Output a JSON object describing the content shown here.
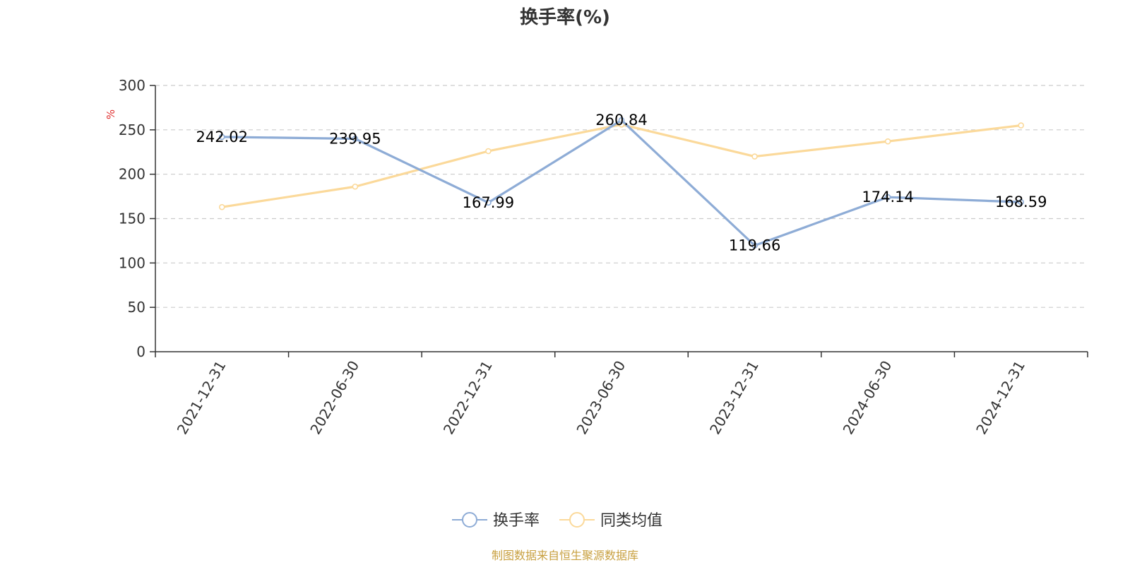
{
  "chart_data": {
    "type": "line",
    "title": "换手率(%)",
    "ylabel": "%",
    "xlabel": "",
    "categories": [
      "2021-12-31",
      "2022-06-30",
      "2022-12-31",
      "2023-06-30",
      "2023-12-31",
      "2024-06-30",
      "2024-12-31"
    ],
    "ylim": [
      0,
      300
    ],
    "yticks": [
      0,
      50,
      100,
      150,
      200,
      250,
      300
    ],
    "grid": true,
    "legend_position": "bottom-center",
    "series": [
      {
        "name": "换手率",
        "color": "#8eacd6",
        "values": [
          242.02,
          239.95,
          167.99,
          260.84,
          119.66,
          174.14,
          168.59
        ],
        "labels": [
          "242.02",
          "239.95",
          "167.99",
          "260.84",
          "119.66",
          "174.14",
          "168.59"
        ]
      },
      {
        "name": "同类均值",
        "color": "#fbd99a",
        "values": [
          163,
          186,
          226,
          256,
          220,
          237,
          255
        ]
      }
    ],
    "source": "制图数据来自恒生聚源数据库",
    "colors": {
      "axis": "#333333",
      "grid": "#cccccc",
      "unit": "#e03030",
      "source": "#c8a040"
    }
  }
}
